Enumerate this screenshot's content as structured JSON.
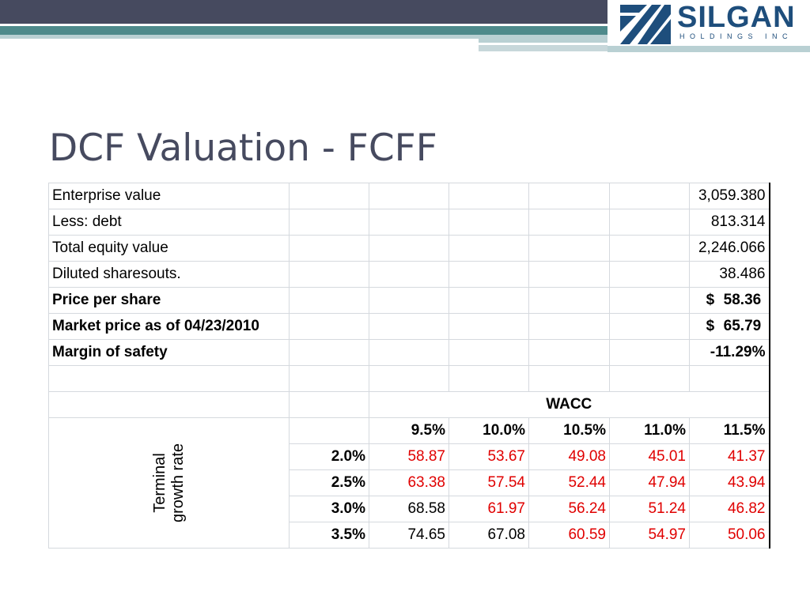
{
  "brand": {
    "name": "SILGAN",
    "subtitle": "HOLDINGS INC"
  },
  "title": "DCF Valuation - FCFF",
  "summary_rows": [
    {
      "label": "Enterprise value",
      "value": "3,059.380"
    },
    {
      "label": "Less: debt",
      "value": "813.314"
    },
    {
      "label": "Total equity value",
      "value": "2,246.066"
    },
    {
      "label": "Diluted sharesouts.",
      "value": "38.486"
    },
    {
      "label": "Price per share",
      "currency": "$",
      "value": "58.36"
    },
    {
      "label": "Market price as of 04/23/2010",
      "currency": "$",
      "value": "65.79"
    },
    {
      "label": "Margin of safety",
      "value": "-11.29%"
    }
  ],
  "sensitivity": {
    "column_header": "WACC",
    "row_header_line1": "Terminal",
    "row_header_line2": "growth rate",
    "wacc": [
      "9.5%",
      "10.0%",
      "10.5%",
      "11.0%",
      "11.5%"
    ],
    "rows": [
      {
        "growth": "2.0%",
        "values": [
          "58.87",
          "53.67",
          "49.08",
          "45.01",
          "41.37"
        ]
      },
      {
        "growth": "2.5%",
        "values": [
          "63.38",
          "57.54",
          "52.44",
          "47.94",
          "43.94"
        ]
      },
      {
        "growth": "3.0%",
        "values": [
          "68.58",
          "61.97",
          "56.24",
          "51.24",
          "46.82"
        ]
      },
      {
        "growth": "3.5%",
        "values": [
          "74.65",
          "67.08",
          "60.59",
          "54.97",
          "50.06"
        ]
      }
    ],
    "highlight_color": "#e00000",
    "highlight_rule": "values below market price 65.79 shown in red"
  }
}
